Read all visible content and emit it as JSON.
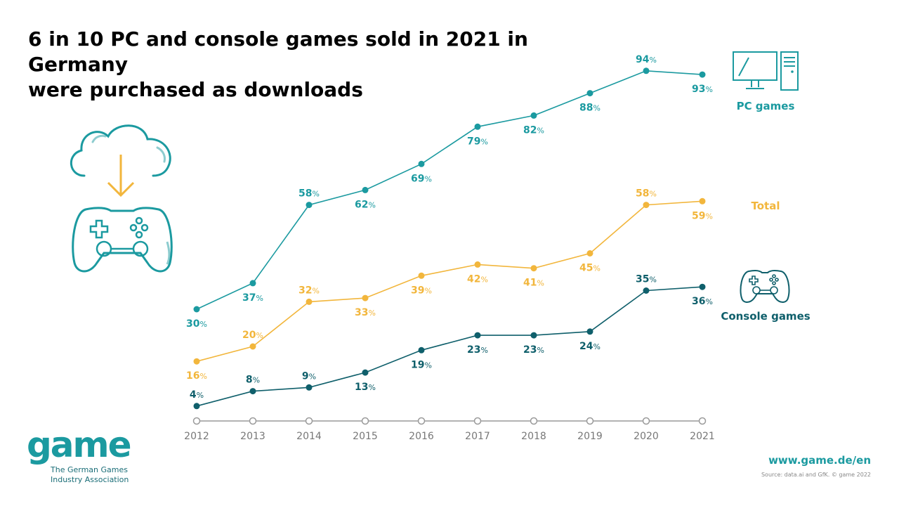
{
  "title": {
    "line1": "6 in 10 PC and console games sold in 2021 in Germany",
    "line2": "were purchased as downloads"
  },
  "chart_data": {
    "type": "line",
    "x": [
      "2012",
      "2013",
      "2014",
      "2015",
      "2016",
      "2017",
      "2018",
      "2019",
      "2020",
      "2021"
    ],
    "ylim": [
      0,
      100
    ],
    "grid": false,
    "value_suffix": "%",
    "series": [
      {
        "name": "PC games",
        "color": "#1b9aa0",
        "values": [
          30,
          37,
          58,
          62,
          69,
          79,
          82,
          88,
          94,
          93
        ]
      },
      {
        "name": "Total",
        "color": "#f2b63c",
        "values": [
          16,
          20,
          32,
          33,
          39,
          42,
          41,
          45,
          58,
          59
        ]
      },
      {
        "name": "Console games",
        "color": "#0f5f6b",
        "values": [
          4,
          8,
          9,
          13,
          19,
          23,
          23,
          24,
          35,
          36
        ]
      }
    ]
  },
  "legend": {
    "pc": "PC games",
    "total": "Total",
    "console": "Console games"
  },
  "icons": {
    "computer": "computer-icon",
    "controller_small": "game-controller-icon",
    "cloud": "cloud-download-icon",
    "controller_large": "game-controller-large-icon"
  },
  "colors": {
    "pc": "#1b9aa0",
    "total": "#f2b63c",
    "console": "#0f5f6b",
    "axis": "#9a9a9a"
  },
  "footer": {
    "logo_word": "game",
    "logo_line1": "The German Games",
    "logo_line2": "Industry Association",
    "url": "www.game.de/en",
    "source": "Source: data.ai and GfK. © game 2022"
  }
}
